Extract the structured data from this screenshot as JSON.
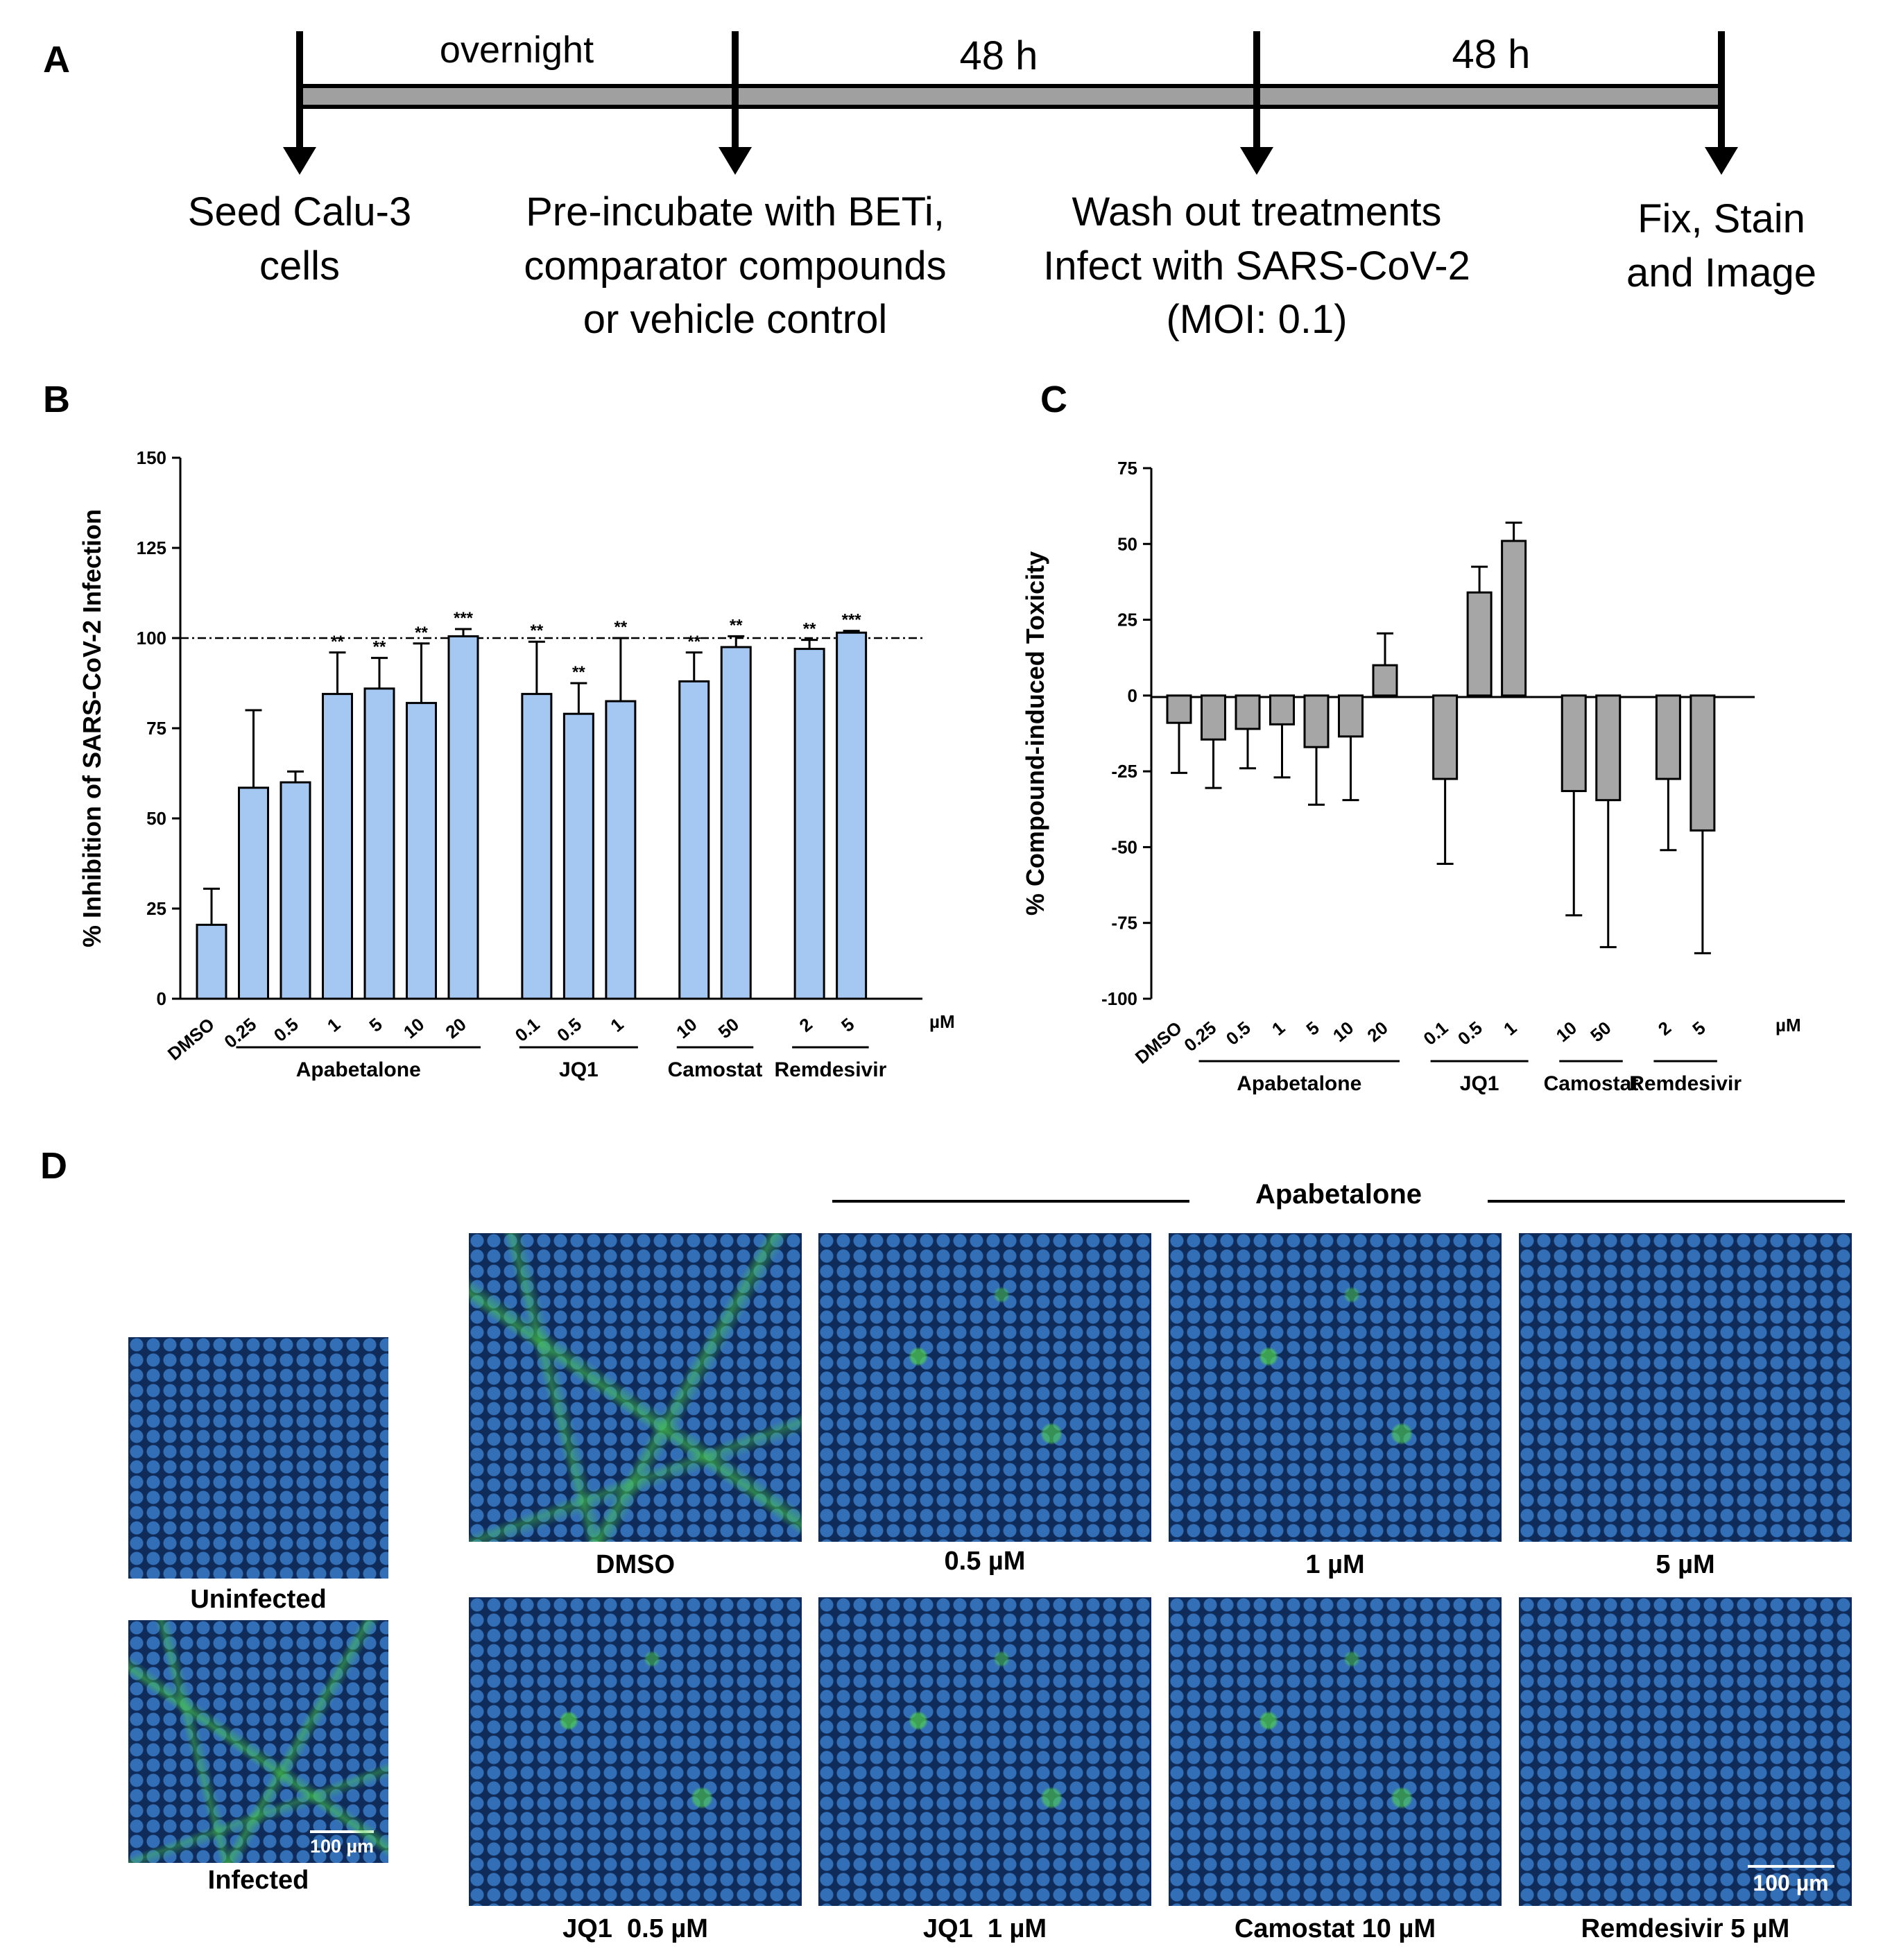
{
  "panel_labels": {
    "a": "A",
    "b": "B",
    "c": "C",
    "d": "D"
  },
  "timeline": {
    "intervals": [
      "overnight",
      "48 h",
      "48 h"
    ],
    "steps": [
      {
        "line1": "Seed Calu-3",
        "line2": "cells",
        "line3": ""
      },
      {
        "line1": "Pre-incubate with BETi,",
        "line2": "comparator compounds",
        "line3": "or vehicle control"
      },
      {
        "line1": "Wash out treatments",
        "line2": "Infect with SARS-CoV-2",
        "line3": "(MOI: 0.1)"
      },
      {
        "line1": "Fix, Stain",
        "line2": "and Image",
        "line3": ""
      }
    ]
  },
  "chart_data": [
    {
      "type": "bar",
      "panel": "B",
      "ylabel": "% Inhibition of SARS-CoV-2 Infection",
      "ylim": [
        0,
        150
      ],
      "yticks": [
        0,
        25,
        50,
        75,
        100,
        125,
        150
      ],
      "reference_line": 100,
      "bar_color": "#a5c8f3",
      "unit_label": "µM",
      "categories": [
        "DMSO",
        "0.25",
        "0.5",
        "1",
        "5",
        "10",
        "20",
        "0.1",
        "0.5",
        "1",
        "10",
        "50",
        "2",
        "5"
      ],
      "values": [
        20.5,
        58.5,
        60,
        84.5,
        86,
        82,
        100.5,
        84.5,
        79,
        82.5,
        88,
        97.5,
        97,
        101.5
      ],
      "errors": [
        10,
        21.5,
        3,
        11.5,
        8.5,
        16.5,
        2,
        14.5,
        8.5,
        17.5,
        8,
        3,
        2.5,
        0.5
      ],
      "significance": [
        "",
        "",
        "",
        "**",
        "**",
        "**",
        "***",
        "**",
        "**",
        "**",
        "**",
        "**",
        "**",
        "***"
      ],
      "groups": [
        {
          "name": "Apabetalone",
          "start": 1,
          "end": 6
        },
        {
          "name": "JQ1",
          "start": 7,
          "end": 9
        },
        {
          "name": "Camostat",
          "start": 10,
          "end": 11
        },
        {
          "name": "Remdesivir",
          "start": 12,
          "end": 13
        }
      ]
    },
    {
      "type": "bar",
      "panel": "C",
      "ylabel": "% Compound-induced Toxicity",
      "ylim": [
        -100,
        75
      ],
      "yticks": [
        -100,
        -75,
        -50,
        -25,
        0,
        25,
        50,
        75
      ],
      "bar_color": "#a6a6a6",
      "unit_label": "µM",
      "categories": [
        "DMSO",
        "0.25",
        "0.5",
        "1",
        "5",
        "10",
        "20",
        "0.1",
        "0.5",
        "1",
        "10",
        "50",
        "2",
        "5"
      ],
      "values": [
        -9,
        -14.5,
        -11,
        -9.5,
        -17,
        -13.5,
        10,
        -27.5,
        34,
        51,
        -31.5,
        -34.5,
        -27.5,
        -44.5
      ],
      "errors": [
        16.5,
        16,
        13,
        17.5,
        19,
        21,
        10.5,
        28,
        8.5,
        6,
        41,
        48.5,
        23.5,
        40.5
      ],
      "groups": [
        {
          "name": "Apabetalone",
          "start": 1,
          "end": 6
        },
        {
          "name": "JQ1",
          "start": 7,
          "end": 9
        },
        {
          "name": "Camostat",
          "start": 10,
          "end": 11
        },
        {
          "name": "Remdesivir",
          "start": 12,
          "end": 13
        }
      ]
    }
  ],
  "microscopy": {
    "group_label": "Apabetalone",
    "uninfected": "Uninfected",
    "infected": "Infected",
    "scale_bar": "100 µm",
    "top_row": [
      "DMSO",
      "0.5 µM",
      "1 µM",
      "5 µM"
    ],
    "bottom_row": [
      "JQ1  0.5 µM",
      "JQ1  1 µM",
      "Camostat 10 µM",
      "Remdesivir 5 µM"
    ]
  }
}
